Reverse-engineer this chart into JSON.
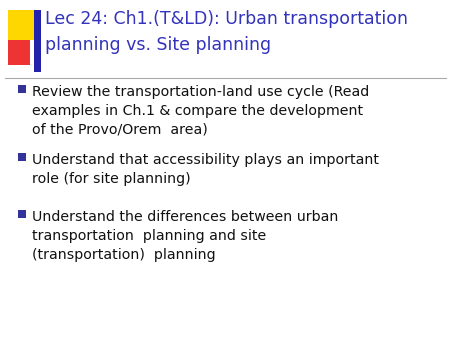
{
  "title_line1": "Lec 24: Ch1.(T&LD): Urban transportation",
  "title_line2": "planning vs. Site planning",
  "title_color": "#3333BB",
  "bullet_color": "#111111",
  "bullet_marker_color": "#333399",
  "background_color": "#FFFFFF",
  "separator_color": "#AAAAAA",
  "bullets": [
    "Review the transportation-land use cycle (Read\nexamples in Ch.1 & compare the development\nof the Provo/Orem  area)",
    "Understand that accessibility plays an important\nrole (for site planning)",
    "Understand the differences between urban\ntransportation  planning and site\n(transportation)  planning"
  ],
  "accent_yellow": "#FFD700",
  "accent_red": "#EE3333",
  "accent_blue": "#2222AA",
  "title_fontsize": 12.5,
  "bullet_fontsize": 10.2,
  "fig_width": 4.5,
  "fig_height": 3.38,
  "dpi": 100
}
